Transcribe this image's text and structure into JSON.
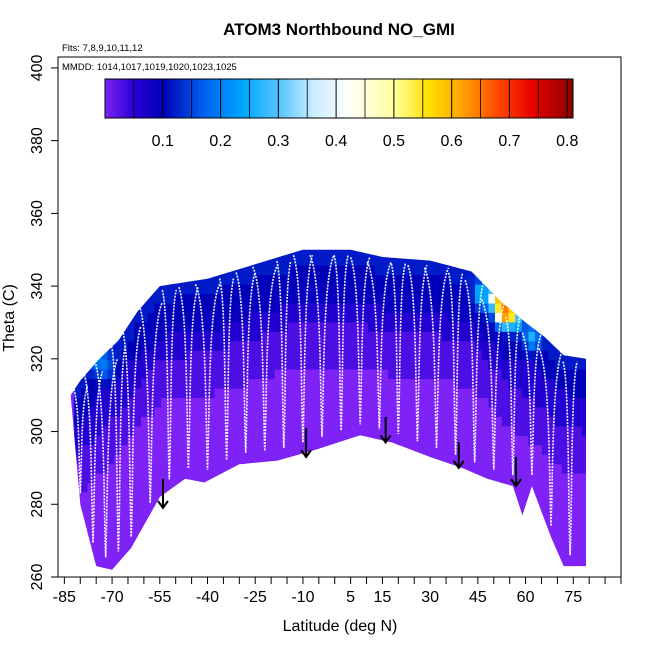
{
  "chart_data": {
    "type": "heatmap",
    "title": "ATOM3 Northbound NO_GMI",
    "annotations": {
      "flights": "Flts: 7,8,9,10,11,12",
      "mmdd": "MMDD: 1014,1017,1019,1020,1023,1025"
    },
    "xlabel": "Latitude (deg N)",
    "ylabel": "Theta (C)",
    "xlim": [
      -87,
      90
    ],
    "ylim": [
      260,
      403
    ],
    "x_ticks": [
      -85,
      -70,
      -55,
      -40,
      -25,
      -10,
      5,
      15,
      30,
      45,
      60,
      75
    ],
    "y_ticks": [
      260,
      280,
      300,
      320,
      340,
      360,
      380,
      400
    ],
    "grid": false,
    "colorbar": {
      "ticks": [
        0.1,
        0.2,
        0.3,
        0.4,
        0.5,
        0.6,
        0.7,
        0.8
      ],
      "range": [
        0.0,
        0.81
      ],
      "stops": [
        {
          "v": 0.0,
          "c": "#7f22f5"
        },
        {
          "v": 0.05,
          "c": "#2a00d6"
        },
        {
          "v": 0.1,
          "c": "#0000b8"
        },
        {
          "v": 0.17,
          "c": "#0060ee"
        },
        {
          "v": 0.24,
          "c": "#00a8ff"
        },
        {
          "v": 0.3,
          "c": "#55c4ff"
        },
        {
          "v": 0.36,
          "c": "#c8ecff"
        },
        {
          "v": 0.42,
          "c": "#ffffff"
        },
        {
          "v": 0.5,
          "c": "#ffffa0"
        },
        {
          "v": 0.56,
          "c": "#ffe000"
        },
        {
          "v": 0.62,
          "c": "#ffa000"
        },
        {
          "v": 0.68,
          "c": "#ff4800"
        },
        {
          "v": 0.74,
          "c": "#e80000"
        },
        {
          "v": 0.81,
          "c": "#8b0000"
        }
      ]
    },
    "field": {
      "lower_boundary": [
        {
          "lat": -83,
          "theta": 310
        },
        {
          "lat": -80,
          "theta": 280
        },
        {
          "lat": -75,
          "theta": 263
        },
        {
          "lat": -70,
          "theta": 262
        },
        {
          "lat": -64,
          "theta": 268
        },
        {
          "lat": -55,
          "theta": 282
        },
        {
          "lat": -47,
          "theta": 287
        },
        {
          "lat": -41,
          "theta": 286
        },
        {
          "lat": -30,
          "theta": 291
        },
        {
          "lat": -18,
          "theta": 292
        },
        {
          "lat": -6,
          "theta": 295
        },
        {
          "lat": 8,
          "theta": 299
        },
        {
          "lat": 18,
          "theta": 297
        },
        {
          "lat": 30,
          "theta": 293
        },
        {
          "lat": 40,
          "theta": 290
        },
        {
          "lat": 48,
          "theta": 287
        },
        {
          "lat": 56,
          "theta": 285
        },
        {
          "lat": 59,
          "theta": 277
        },
        {
          "lat": 62,
          "theta": 285
        },
        {
          "lat": 68,
          "theta": 271
        },
        {
          "lat": 72,
          "theta": 263
        },
        {
          "lat": 79,
          "theta": 263
        }
      ],
      "upper_boundary": [
        {
          "lat": -83,
          "theta": 310
        },
        {
          "lat": -80,
          "theta": 314
        },
        {
          "lat": -74,
          "theta": 320
        },
        {
          "lat": -68,
          "theta": 325
        },
        {
          "lat": -62,
          "theta": 333
        },
        {
          "lat": -55,
          "theta": 340
        },
        {
          "lat": -40,
          "theta": 342
        },
        {
          "lat": -25,
          "theta": 346
        },
        {
          "lat": -10,
          "theta": 350
        },
        {
          "lat": 5,
          "theta": 350
        },
        {
          "lat": 15,
          "theta": 348
        },
        {
          "lat": 30,
          "theta": 347
        },
        {
          "lat": 43,
          "theta": 344
        },
        {
          "lat": 52,
          "theta": 336
        },
        {
          "lat": 60,
          "theta": 330
        },
        {
          "lat": 66,
          "theta": 326
        },
        {
          "lat": 72,
          "theta": 321
        },
        {
          "lat": 79,
          "theta": 320
        },
        {
          "lat": 79,
          "theta": 263
        }
      ],
      "high_values": [
        {
          "lat": -75,
          "theta": 321,
          "no": 0.24
        },
        {
          "lat": -72,
          "theta": 318,
          "no": 0.2
        },
        {
          "lat": 46,
          "theta": 338,
          "no": 0.28
        },
        {
          "lat": 48,
          "theta": 336,
          "no": 0.18
        },
        {
          "lat": 51,
          "theta": 337,
          "no": 0.58
        },
        {
          "lat": 53,
          "theta": 333,
          "no": 0.72
        },
        {
          "lat": 55,
          "theta": 333,
          "no": 0.66
        },
        {
          "lat": 57,
          "theta": 331,
          "no": 0.3
        },
        {
          "lat": 62,
          "theta": 326,
          "no": 0.26
        }
      ]
    },
    "profile_latitudes": [
      -80,
      -76,
      -72,
      -68,
      -64,
      -58,
      -52,
      -46,
      -40,
      -34,
      -28,
      -22,
      -16,
      -10,
      -4,
      2,
      8,
      14,
      20,
      26,
      32,
      38,
      44,
      50,
      56,
      62,
      68,
      74
    ],
    "arrows": [
      {
        "lat": -54,
        "theta_top": 287,
        "theta_tip": 279
      },
      {
        "lat": -9,
        "theta_top": 301,
        "theta_tip": 293
      },
      {
        "lat": 16,
        "theta_top": 304,
        "theta_tip": 297
      },
      {
        "lat": 39,
        "theta_top": 297,
        "theta_tip": 290
      },
      {
        "lat": 57,
        "theta_top": 293,
        "theta_tip": 285
      }
    ]
  }
}
